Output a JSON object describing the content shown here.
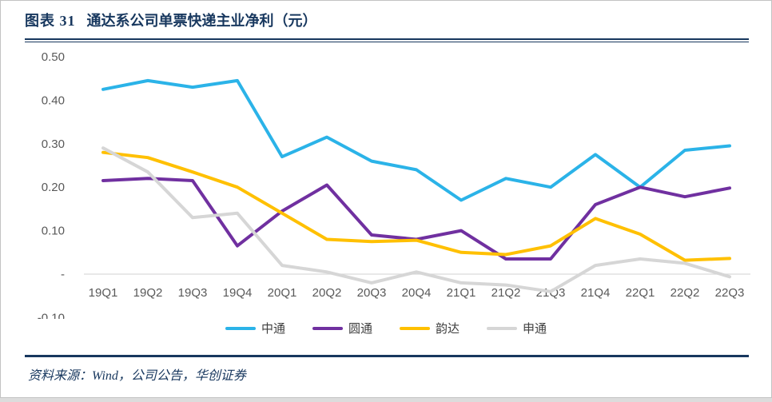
{
  "figure": {
    "label": "图表 31",
    "title": "通达系公司单票快递主业净利（元）",
    "source": "资料来源：Wind，公司公告，华创证券"
  },
  "colors": {
    "accent_navy": "#17375E",
    "axis_text": "#595959",
    "axis_line": "#D9D9D9",
    "legend_text": "#3F3F3F",
    "zhongtong": "#2BB3E8",
    "yuantong": "#7030A0",
    "yunda": "#FFC000",
    "shentong": "#D6D6D6"
  },
  "chart_data": {
    "type": "line",
    "title": "通达系公司单票快递主业净利（元）",
    "xlabel": "",
    "ylabel": "",
    "ylim": [
      -0.1,
      0.5
    ],
    "grid": "none",
    "legend_position": "bottom",
    "categories": [
      "19Q1",
      "19Q2",
      "19Q3",
      "19Q4",
      "20Q1",
      "20Q2",
      "20Q3",
      "20Q4",
      "21Q1",
      "21Q2",
      "21Q3",
      "21Q4",
      "22Q1",
      "22Q2",
      "22Q3"
    ],
    "y_ticks": [
      {
        "label": "0.50",
        "value": 0.5
      },
      {
        "label": "0.40",
        "value": 0.4
      },
      {
        "label": "0.30",
        "value": 0.3
      },
      {
        "label": "0.20",
        "value": 0.2
      },
      {
        "label": "0.10",
        "value": 0.1
      },
      {
        "label": "-",
        "value": 0.0
      },
      {
        "label": "-0.10",
        "value": -0.1
      }
    ],
    "series": [
      {
        "name": "中通",
        "color_key": "zhongtong",
        "values": [
          0.425,
          0.445,
          0.43,
          0.445,
          0.27,
          0.315,
          0.26,
          0.24,
          0.17,
          0.22,
          0.2,
          0.275,
          0.2,
          0.285,
          0.295
        ]
      },
      {
        "name": "圆通",
        "color_key": "yuantong",
        "values": [
          0.215,
          0.22,
          0.215,
          0.065,
          0.145,
          0.205,
          0.09,
          0.08,
          0.1,
          0.035,
          0.035,
          0.16,
          0.2,
          0.178,
          0.198
        ]
      },
      {
        "name": "韵达",
        "color_key": "yunda",
        "values": [
          0.28,
          0.268,
          0.235,
          0.2,
          0.14,
          0.08,
          0.075,
          0.078,
          0.05,
          0.045,
          0.065,
          0.128,
          0.092,
          0.032,
          0.036
        ]
      },
      {
        "name": "申通",
        "color_key": "shentong",
        "values": [
          0.29,
          0.235,
          0.13,
          0.14,
          0.02,
          0.005,
          -0.02,
          0.005,
          -0.02,
          -0.025,
          -0.04,
          0.02,
          0.035,
          0.025,
          -0.006
        ]
      }
    ]
  }
}
